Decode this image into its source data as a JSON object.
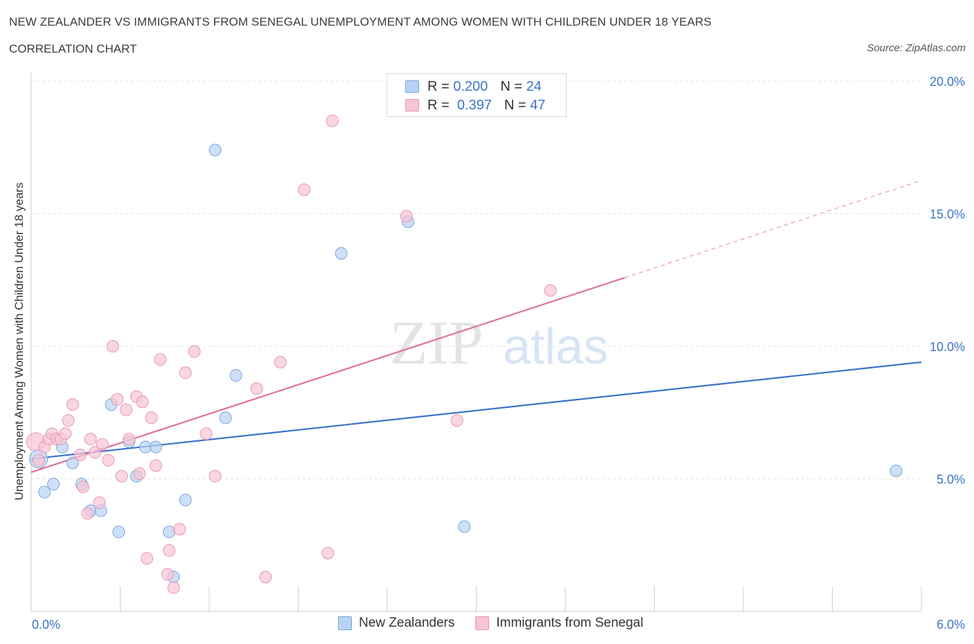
{
  "header": {
    "title": "NEW ZEALANDER VS IMMIGRANTS FROM SENEGAL UNEMPLOYMENT AMONG WOMEN WITH CHILDREN UNDER 18 YEARS",
    "subtitle": "CORRELATION CHART",
    "source": "Source: ZipAtlas.com"
  },
  "legend_top": {
    "rows": [
      {
        "r_label": "R =",
        "r_value": "0.200",
        "n_label": "N =",
        "n_value": "24"
      },
      {
        "r_label": "R =",
        "r_value": "0.397",
        "n_label": "N =",
        "n_value": "47"
      }
    ]
  },
  "legend_bottom": {
    "items": [
      {
        "label": "New Zealanders"
      },
      {
        "label": "Immigrants from Senegal"
      }
    ]
  },
  "watermark": {
    "part1": "ZIP",
    "part2": "atlas"
  },
  "colors": {
    "blue_fill": "#b8d3f3",
    "blue_stroke": "#7aa6dc",
    "blue_line": "#3b74c9",
    "pink_fill": "#f7c4d4",
    "pink_stroke": "#e896b2",
    "pink_line": "#e0709a",
    "axis_text": "#3b74c9",
    "grid": "#e3e3e3"
  },
  "chart_data": {
    "type": "scatter",
    "title": "NEW ZEALANDER VS IMMIGRANTS FROM SENEGAL UNEMPLOYMENT AMONG WOMEN WITH CHILDREN UNDER 18 YEARS",
    "xlabel": "",
    "ylabel": "Unemployment Among Women with Children Under 18 years",
    "xlim": [
      0,
      6
    ],
    "ylim": [
      0,
      20
    ],
    "x_tick_labels": [
      "0.0%",
      "6.0%"
    ],
    "y_ticks": [
      5,
      10,
      15,
      20
    ],
    "y_tick_labels": [
      "5.0%",
      "10.0%",
      "15.0%",
      "20.0%"
    ],
    "grid": true,
    "legend_position": "top-center",
    "series": [
      {
        "name": "New Zealanders",
        "color": "blue",
        "R": 0.2,
        "N": 24,
        "trend": {
          "x0": 0.0,
          "y0": 5.75,
          "x1": 6.0,
          "y1": 9.4,
          "solid_until": 6.0
        },
        "points": [
          [
            0.05,
            5.75,
            "large"
          ],
          [
            0.09,
            4.5
          ],
          [
            0.15,
            4.8
          ],
          [
            0.21,
            6.2
          ],
          [
            0.28,
            5.6
          ],
          [
            0.34,
            4.8
          ],
          [
            0.4,
            3.8
          ],
          [
            0.47,
            3.8
          ],
          [
            0.54,
            7.8
          ],
          [
            0.59,
            3.0
          ],
          [
            0.66,
            6.4
          ],
          [
            0.71,
            5.1
          ],
          [
            0.77,
            6.2
          ],
          [
            0.84,
            6.2
          ],
          [
            0.93,
            3.0
          ],
          [
            0.96,
            1.3
          ],
          [
            1.04,
            4.2
          ],
          [
            1.24,
            17.4
          ],
          [
            1.31,
            7.3
          ],
          [
            1.38,
            8.9
          ],
          [
            2.09,
            13.5
          ],
          [
            2.54,
            14.7
          ],
          [
            2.92,
            3.2
          ],
          [
            5.83,
            5.3
          ]
        ]
      },
      {
        "name": "Immigrants from Senegal",
        "color": "pink",
        "R": 0.397,
        "N": 47,
        "trend": {
          "x0": 0.0,
          "y0": 5.25,
          "x1": 6.0,
          "y1": 16.25,
          "solid_until": 4.0
        },
        "points": [
          [
            0.03,
            6.4,
            "large"
          ],
          [
            0.05,
            5.7
          ],
          [
            0.09,
            6.2
          ],
          [
            0.12,
            6.5
          ],
          [
            0.14,
            6.7
          ],
          [
            0.17,
            6.5
          ],
          [
            0.2,
            6.5
          ],
          [
            0.23,
            6.7
          ],
          [
            0.25,
            7.2
          ],
          [
            0.28,
            7.8
          ],
          [
            0.33,
            5.9
          ],
          [
            0.35,
            4.7
          ],
          [
            0.38,
            3.7
          ],
          [
            0.4,
            6.5
          ],
          [
            0.43,
            6.0
          ],
          [
            0.46,
            4.1
          ],
          [
            0.48,
            6.3
          ],
          [
            0.52,
            5.7
          ],
          [
            0.55,
            10.0
          ],
          [
            0.58,
            8.0
          ],
          [
            0.61,
            5.1
          ],
          [
            0.64,
            7.6
          ],
          [
            0.66,
            6.5
          ],
          [
            0.71,
            8.1
          ],
          [
            0.73,
            5.2
          ],
          [
            0.75,
            7.9
          ],
          [
            0.78,
            2.0
          ],
          [
            0.81,
            7.3
          ],
          [
            0.84,
            5.5
          ],
          [
            0.87,
            9.5
          ],
          [
            0.92,
            1.4
          ],
          [
            0.93,
            2.3
          ],
          [
            0.96,
            0.9
          ],
          [
            1.0,
            3.1
          ],
          [
            1.04,
            9.0
          ],
          [
            1.1,
            9.8
          ],
          [
            1.18,
            6.7
          ],
          [
            1.24,
            5.1
          ],
          [
            1.52,
            8.4
          ],
          [
            1.58,
            1.3
          ],
          [
            1.68,
            9.4
          ],
          [
            1.84,
            15.9
          ],
          [
            2.0,
            2.2
          ],
          [
            2.03,
            18.5
          ],
          [
            2.53,
            14.9
          ],
          [
            2.87,
            7.2
          ],
          [
            3.5,
            12.1
          ]
        ]
      }
    ]
  }
}
